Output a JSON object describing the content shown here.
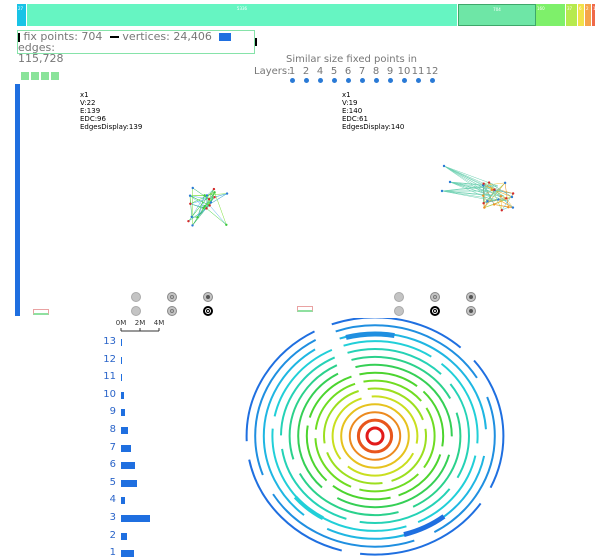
{
  "distribution_bar": {
    "segments": [
      {
        "label": "27",
        "color": "#18c3e6"
      },
      {
        "label": "5336",
        "color": "#66f5c2"
      },
      {
        "label": "704",
        "color": "#6ee6a6"
      },
      {
        "label": "160",
        "color": "#7ef06a"
      },
      {
        "label": "37",
        "color": "#b6ea4e"
      },
      {
        "label": "6",
        "color": "#f2e14a"
      },
      {
        "label": "2",
        "color": "#f5a44a"
      },
      {
        "label": "1",
        "color": "#ef6a4a"
      }
    ]
  },
  "stats": {
    "fix_points_label": "fix points: 704",
    "vertices_label": "vertices: 24,406",
    "edges_label": "edges:",
    "edges_value": "115,728"
  },
  "layers": {
    "title": "Similar size fixed points in",
    "label": "Layers:",
    "items": [
      "1",
      "2",
      "4",
      "5",
      "6",
      "7",
      "8",
      "9",
      "10",
      "11",
      "12"
    ]
  },
  "panel_left": {
    "lines": [
      "x1",
      "V:22",
      "E:139",
      "EDC:96",
      "EdgesDisplay:139"
    ]
  },
  "panel_right": {
    "lines": [
      "x1",
      "V:19",
      "E:140",
      "EDC:61",
      "EdgesDisplay:140"
    ]
  },
  "histogram_axis": {
    "ticks": [
      "0M",
      "2M",
      "4M"
    ]
  },
  "chart_data": {
    "type": "bar",
    "orientation": "horizontal",
    "categories": [
      "13",
      "12",
      "11",
      "10",
      "9",
      "8",
      "7",
      "6",
      "5",
      "4",
      "3",
      "2",
      "1"
    ],
    "values": [
      0.05,
      0.1,
      0.1,
      0.35,
      0.4,
      0.7,
      1.0,
      1.5,
      1.7,
      0.4,
      3.0,
      0.6,
      1.4
    ],
    "xlabel": "",
    "ylabel": "",
    "xlim": [
      0,
      4
    ]
  },
  "colors": {
    "accent": "#1f6fe0",
    "ring_outer": "#1f6fe0",
    "ring_inner": "#e21b1b"
  }
}
